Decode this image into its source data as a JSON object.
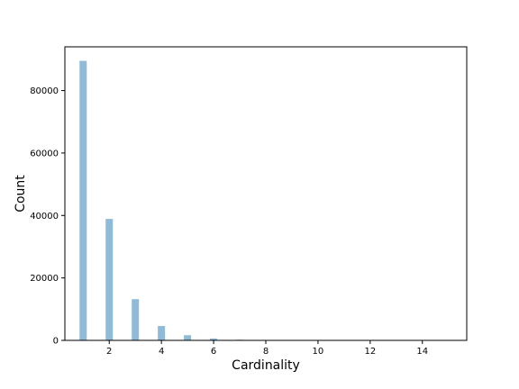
{
  "chart_data": {
    "type": "bar",
    "title": "",
    "xlabel": "Cardinality",
    "ylabel": "Count",
    "x": [
      1,
      2,
      3,
      4,
      5,
      6,
      7,
      8,
      9,
      10,
      11,
      12,
      13,
      14,
      15
    ],
    "values": [
      89500,
      38900,
      13200,
      4600,
      1650,
      620,
      220,
      70,
      25,
      10,
      5,
      3,
      2,
      1,
      1
    ],
    "xlim": [
      0.3,
      15.7
    ],
    "ylim": [
      0,
      94000
    ],
    "xticks": [
      2,
      4,
      6,
      8,
      10,
      12,
      14
    ],
    "xtick_labels": [
      "2",
      "4",
      "6",
      "8",
      "10",
      "12",
      "14"
    ],
    "yticks": [
      0,
      20000,
      40000,
      60000,
      80000
    ],
    "ytick_labels": [
      "0",
      "20000",
      "40000",
      "60000",
      "80000"
    ],
    "bar_color": "#8fbad8",
    "grid": false,
    "legend": "none"
  }
}
